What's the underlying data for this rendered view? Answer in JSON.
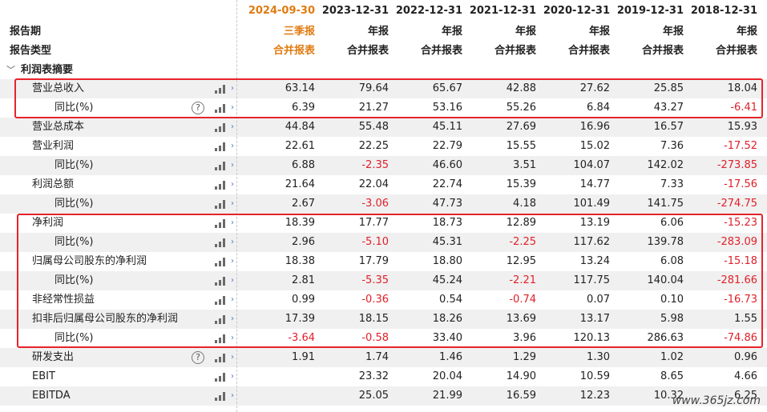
{
  "columns": [
    {
      "date": "2024-09-30",
      "report": "三季报",
      "type": "合并报表"
    },
    {
      "date": "2023-12-31",
      "report": "年报",
      "type": "合并报表"
    },
    {
      "date": "2022-12-31",
      "report": "年报",
      "type": "合并报表"
    },
    {
      "date": "2021-12-31",
      "report": "年报",
      "type": "合并报表"
    },
    {
      "date": "2020-12-31",
      "report": "年报",
      "type": "合并报表"
    },
    {
      "date": "2019-12-31",
      "report": "年报",
      "type": "合并报表"
    },
    {
      "date": "2018-12-31",
      "report": "年报",
      "type": "合并报表"
    }
  ],
  "header": {
    "report_period_label": "报告期",
    "report_type_label": "报告类型"
  },
  "section": {
    "title": "利润表摘要"
  },
  "rows": [
    {
      "label": "营业总收入",
      "level": 1,
      "help": false,
      "values": [
        "63.14",
        "79.64",
        "65.67",
        "42.88",
        "27.62",
        "25.85",
        "18.04"
      ]
    },
    {
      "label": "同比(%)",
      "level": 2,
      "help": true,
      "values": [
        "6.39",
        "21.27",
        "53.16",
        "55.26",
        "6.84",
        "43.27",
        "-6.41"
      ]
    },
    {
      "label": "营业总成本",
      "level": 1,
      "help": false,
      "values": [
        "44.84",
        "55.48",
        "45.11",
        "27.69",
        "16.96",
        "16.57",
        "15.93"
      ]
    },
    {
      "label": "营业利润",
      "level": 1,
      "help": false,
      "values": [
        "22.61",
        "22.25",
        "22.79",
        "15.55",
        "15.02",
        "7.36",
        "-17.52"
      ]
    },
    {
      "label": "同比(%)",
      "level": 2,
      "help": false,
      "values": [
        "6.88",
        "-2.35",
        "46.60",
        "3.51",
        "104.07",
        "142.02",
        "-273.85"
      ]
    },
    {
      "label": "利润总额",
      "level": 1,
      "help": false,
      "values": [
        "21.64",
        "22.04",
        "22.74",
        "15.39",
        "14.77",
        "7.33",
        "-17.56"
      ]
    },
    {
      "label": "同比(%)",
      "level": 2,
      "help": false,
      "values": [
        "2.67",
        "-3.06",
        "47.73",
        "4.18",
        "101.49",
        "141.75",
        "-274.75"
      ]
    },
    {
      "label": "净利润",
      "level": 1,
      "help": false,
      "values": [
        "18.39",
        "17.77",
        "18.73",
        "12.89",
        "13.19",
        "6.06",
        "-15.23"
      ]
    },
    {
      "label": "同比(%)",
      "level": 2,
      "help": false,
      "values": [
        "2.96",
        "-5.10",
        "45.31",
        "-2.25",
        "117.62",
        "139.78",
        "-283.09"
      ]
    },
    {
      "label": "归属母公司股东的净利润",
      "level": 1,
      "help": false,
      "values": [
        "18.38",
        "17.79",
        "18.80",
        "12.95",
        "13.24",
        "6.08",
        "-15.18"
      ]
    },
    {
      "label": "同比(%)",
      "level": 2,
      "help": false,
      "values": [
        "2.81",
        "-5.35",
        "45.24",
        "-2.21",
        "117.75",
        "140.04",
        "-281.66"
      ]
    },
    {
      "label": "非经常性损益",
      "level": 1,
      "help": false,
      "values": [
        "0.99",
        "-0.36",
        "0.54",
        "-0.74",
        "0.07",
        "0.10",
        "-16.73"
      ]
    },
    {
      "label": "扣非后归属母公司股东的净利润",
      "level": 1,
      "help": false,
      "values": [
        "17.39",
        "18.15",
        "18.26",
        "13.69",
        "13.17",
        "5.98",
        "1.55"
      ]
    },
    {
      "label": "同比(%)",
      "level": 2,
      "help": false,
      "values": [
        "-3.64",
        "-0.58",
        "33.40",
        "3.96",
        "120.13",
        "286.63",
        "-74.86"
      ]
    },
    {
      "label": "研发支出",
      "level": 1,
      "help": true,
      "values": [
        "1.91",
        "1.74",
        "1.46",
        "1.29",
        "1.30",
        "1.02",
        "0.96"
      ]
    },
    {
      "label": "EBIT",
      "level": 1,
      "help": false,
      "values": [
        "",
        "23.32",
        "20.04",
        "14.90",
        "10.59",
        "8.65",
        "4.66"
      ]
    },
    {
      "label": "EBITDA",
      "level": 1,
      "help": false,
      "values": [
        "",
        "25.05",
        "21.99",
        "16.59",
        "12.23",
        "10.32",
        "6.25"
      ]
    }
  ],
  "watermark": "www.365jz.com",
  "colors": {
    "negative": "#e0202a",
    "accent": "#e07b10",
    "highlight_box": "#e6242a"
  }
}
